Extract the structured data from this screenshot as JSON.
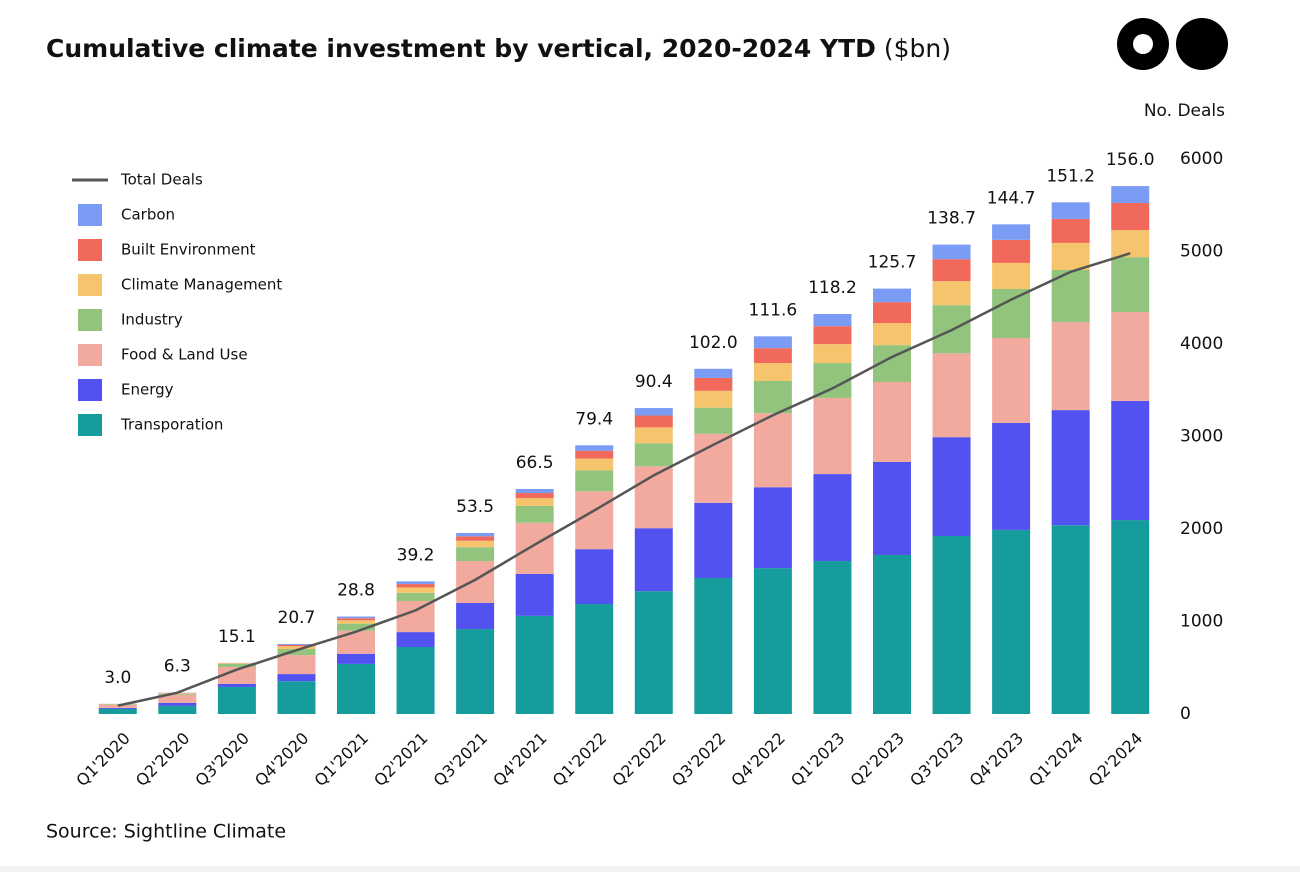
{
  "chart_data": {
    "type": "stacked-bar-line",
    "title": "Cumulative climate investment by vertical, 2020-2024 YTD",
    "title_suffix": "($bn)",
    "source": "Source: Sightline Climate",
    "y2label": "No. Deals",
    "categories": [
      "Q1'2020",
      "Q2'2020",
      "Q3'2020",
      "Q4'2020",
      "Q1'2021",
      "Q2'2021",
      "Q3'2021",
      "Q4'2021",
      "Q1'2022",
      "Q2'2022",
      "Q3'2022",
      "Q4'2022",
      "Q1'2023",
      "Q2'2023",
      "Q3'2023",
      "Q4'2023",
      "Q1'2024",
      "Q2'2024"
    ],
    "ylim": [
      0,
      164
    ],
    "y2lim": [
      0,
      6000
    ],
    "y2ticks": [
      0,
      1000,
      2000,
      3000,
      4000,
      5000,
      6000
    ],
    "totals": [
      3.0,
      6.3,
      15.1,
      20.7,
      28.8,
      39.2,
      53.5,
      66.5,
      79.4,
      90.4,
      102.0,
      111.6,
      118.2,
      125.7,
      138.7,
      144.7,
      151.2,
      156.0
    ],
    "total_labels": [
      "3.0",
      "6.3",
      "15.1",
      "20.7",
      "28.8",
      "39.2",
      "53.5",
      "66.5",
      "79.4",
      "90.4",
      "102.0",
      "111.6",
      "118.2",
      "125.7",
      "138.7",
      "144.7",
      "151.2",
      "156.0"
    ],
    "series": [
      {
        "name": "Transporation",
        "type": "bar",
        "color": "#169c9c",
        "values": [
          1.5,
          2.4,
          8.0,
          9.7,
          14.8,
          19.8,
          25.1,
          29.0,
          32.5,
          36.3,
          40.2,
          43.1,
          45.2,
          47.0,
          52.6,
          54.4,
          55.8,
          57.3
        ]
      },
      {
        "name": "Energy",
        "type": "bar",
        "color": "#5252f0",
        "values": [
          0.3,
          0.9,
          0.9,
          2.1,
          3.0,
          4.4,
          7.7,
          12.4,
          16.2,
          18.6,
          22.2,
          23.9,
          25.7,
          27.5,
          29.2,
          31.6,
          34.0,
          35.2
        ]
      },
      {
        "name": "Food & Land Use",
        "type": "bar",
        "color": "#f2a99e",
        "values": [
          0.9,
          2.4,
          5.0,
          5.6,
          6.8,
          9.2,
          12.4,
          15.1,
          17.1,
          18.3,
          20.4,
          21.9,
          22.5,
          23.6,
          24.8,
          25.1,
          26.0,
          26.3
        ]
      },
      {
        "name": "Industry",
        "type": "bar",
        "color": "#93c47d",
        "values": [
          0.15,
          0.3,
          0.9,
          1.8,
          2.1,
          2.4,
          4.1,
          5.0,
          6.2,
          6.8,
          7.7,
          9.5,
          10.3,
          10.9,
          14.2,
          14.5,
          15.4,
          16.2
        ]
      },
      {
        "name": "Climate Management",
        "type": "bar",
        "color": "#f5c46c",
        "values": [
          0.05,
          0.15,
          0.2,
          0.8,
          1.0,
          1.6,
          1.9,
          2.3,
          3.5,
          4.7,
          5.0,
          5.3,
          5.6,
          6.5,
          7.1,
          7.7,
          8.0,
          8.0
        ]
      },
      {
        "name": "Built Environment",
        "type": "bar",
        "color": "#f0695a",
        "values": [
          0.05,
          0.1,
          0.05,
          0.4,
          0.6,
          1.0,
          1.3,
          1.5,
          2.3,
          3.5,
          3.8,
          4.4,
          5.3,
          6.2,
          6.5,
          6.8,
          7.1,
          8.0
        ]
      },
      {
        "name": "Carbon",
        "type": "bar",
        "color": "#7b9cf5",
        "values": [
          0.05,
          0.05,
          0.05,
          0.3,
          0.5,
          0.8,
          1.0,
          1.2,
          1.6,
          2.2,
          2.7,
          3.5,
          3.6,
          4.0,
          4.3,
          4.6,
          4.9,
          5.0
        ]
      },
      {
        "name": "Total Deals",
        "type": "line",
        "axis": "y2",
        "color": "#555555",
        "values": [
          90,
          230,
          480,
          690,
          890,
          1120,
          1450,
          1830,
          2200,
          2580,
          2910,
          3230,
          3520,
          3860,
          4150,
          4480,
          4780,
          4980
        ]
      }
    ]
  }
}
